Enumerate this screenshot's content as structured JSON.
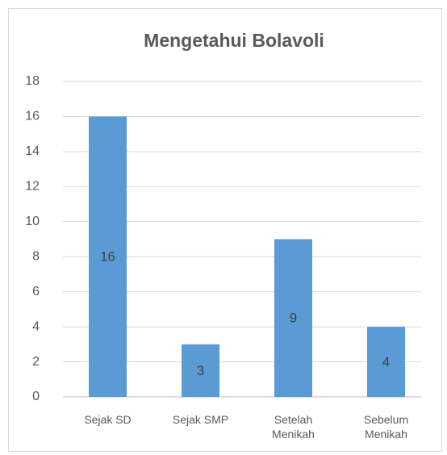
{
  "chart_data": {
    "type": "bar",
    "title": "Mengetahui Bolavoli",
    "categories": [
      "Sejak SD",
      "Sejak SMP",
      "Setelah Menikah",
      "Sebelum Menikah"
    ],
    "values": [
      16,
      3,
      9,
      4
    ],
    "color": "#5b9bd5",
    "ylim": [
      0,
      18
    ],
    "yticks": [
      0,
      2,
      4,
      6,
      8,
      10,
      12,
      14,
      16,
      18
    ],
    "grid": true
  }
}
